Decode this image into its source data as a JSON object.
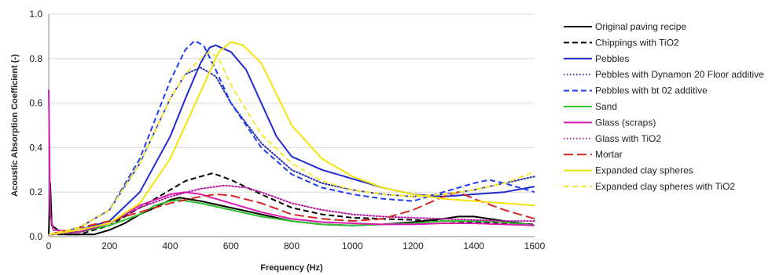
{
  "chart_data": {
    "type": "line",
    "title": "",
    "xlabel": "Frequency (Hz)",
    "ylabel": "Acoustic Absorption Coefficient (-)",
    "xlim": [
      0,
      1600
    ],
    "ylim": [
      0,
      1.0
    ],
    "xticks": [
      0,
      200,
      400,
      600,
      800,
      1000,
      1200,
      1400,
      1600
    ],
    "xtick_labels": [
      "0",
      "200",
      "400",
      "600",
      "800",
      "1000",
      "1200",
      "1400",
      "1600"
    ],
    "yticks": [
      0,
      0.2,
      0.4,
      0.6,
      0.8,
      1.0
    ],
    "ytick_labels": [
      "0.0",
      "0.2",
      "0.4",
      "0.6",
      "0.8",
      "1.0"
    ],
    "grid": "horizontal",
    "legend_position": "right",
    "series": [
      {
        "name": "Original paving recipe",
        "color": "#000000",
        "dash": "solid",
        "points": [
          [
            0,
            0.01
          ],
          [
            5,
            0.24
          ],
          [
            10,
            0.05
          ],
          [
            50,
            0.01
          ],
          [
            150,
            0.01
          ],
          [
            200,
            0.03
          ],
          [
            250,
            0.06
          ],
          [
            300,
            0.1
          ],
          [
            350,
            0.13
          ],
          [
            400,
            0.165
          ],
          [
            430,
            0.175
          ],
          [
            500,
            0.16
          ],
          [
            600,
            0.13
          ],
          [
            700,
            0.1
          ],
          [
            800,
            0.07
          ],
          [
            900,
            0.055
          ],
          [
            1000,
            0.05
          ],
          [
            1100,
            0.055
          ],
          [
            1200,
            0.065
          ],
          [
            1300,
            0.08
          ],
          [
            1350,
            0.09
          ],
          [
            1400,
            0.09
          ],
          [
            1500,
            0.07
          ],
          [
            1600,
            0.05
          ]
        ]
      },
      {
        "name": "Chippings with TiO2",
        "color": "#000000",
        "dash": "dashed",
        "points": [
          [
            0,
            0.01
          ],
          [
            100,
            0.01
          ],
          [
            200,
            0.05
          ],
          [
            300,
            0.13
          ],
          [
            400,
            0.21
          ],
          [
            450,
            0.25
          ],
          [
            500,
            0.27
          ],
          [
            540,
            0.285
          ],
          [
            600,
            0.255
          ],
          [
            700,
            0.19
          ],
          [
            800,
            0.13
          ],
          [
            900,
            0.1
          ],
          [
            1000,
            0.085
          ],
          [
            1100,
            0.08
          ],
          [
            1200,
            0.075
          ],
          [
            1300,
            0.07
          ],
          [
            1400,
            0.065
          ],
          [
            1500,
            0.06
          ],
          [
            1600,
            0.055
          ]
        ]
      },
      {
        "name": "Pebbles",
        "color": "#1f2bd1",
        "dash": "solid",
        "points": [
          [
            0,
            0.01
          ],
          [
            100,
            0.03
          ],
          [
            200,
            0.07
          ],
          [
            300,
            0.2
          ],
          [
            400,
            0.45
          ],
          [
            450,
            0.62
          ],
          [
            500,
            0.78
          ],
          [
            530,
            0.85
          ],
          [
            550,
            0.86
          ],
          [
            600,
            0.83
          ],
          [
            650,
            0.75
          ],
          [
            700,
            0.6
          ],
          [
            750,
            0.45
          ],
          [
            800,
            0.36
          ],
          [
            900,
            0.3
          ],
          [
            1000,
            0.26
          ],
          [
            1100,
            0.22
          ],
          [
            1200,
            0.19
          ],
          [
            1300,
            0.18
          ],
          [
            1400,
            0.19
          ],
          [
            1500,
            0.2
          ],
          [
            1600,
            0.225
          ]
        ]
      },
      {
        "name": "Pebbles with Dynamon 20 Floor additive",
        "color": "#2933a8",
        "dash": "dotted",
        "points": [
          [
            0,
            0.01
          ],
          [
            100,
            0.04
          ],
          [
            200,
            0.12
          ],
          [
            300,
            0.33
          ],
          [
            400,
            0.62
          ],
          [
            450,
            0.73
          ],
          [
            500,
            0.76
          ],
          [
            550,
            0.72
          ],
          [
            600,
            0.6
          ],
          [
            700,
            0.42
          ],
          [
            800,
            0.3
          ],
          [
            900,
            0.24
          ],
          [
            1000,
            0.21
          ],
          [
            1100,
            0.19
          ],
          [
            1200,
            0.18
          ],
          [
            1300,
            0.19
          ],
          [
            1400,
            0.21
          ],
          [
            1500,
            0.24
          ],
          [
            1600,
            0.27
          ]
        ]
      },
      {
        "name": "Pebbles with bt 02 additive",
        "color": "#1f3df5",
        "dash": "dashed",
        "points": [
          [
            0,
            0.01
          ],
          [
            100,
            0.04
          ],
          [
            200,
            0.12
          ],
          [
            300,
            0.35
          ],
          [
            400,
            0.7
          ],
          [
            450,
            0.84
          ],
          [
            480,
            0.88
          ],
          [
            510,
            0.86
          ],
          [
            550,
            0.75
          ],
          [
            600,
            0.6
          ],
          [
            700,
            0.4
          ],
          [
            800,
            0.28
          ],
          [
            900,
            0.22
          ],
          [
            1000,
            0.19
          ],
          [
            1100,
            0.17
          ],
          [
            1200,
            0.16
          ],
          [
            1300,
            0.2
          ],
          [
            1400,
            0.24
          ],
          [
            1450,
            0.255
          ],
          [
            1500,
            0.24
          ],
          [
            1600,
            0.2
          ]
        ]
      },
      {
        "name": "Sand",
        "color": "#2fc12f",
        "dash": "solid",
        "points": [
          [
            0,
            0.01
          ],
          [
            100,
            0.02
          ],
          [
            200,
            0.05
          ],
          [
            300,
            0.1
          ],
          [
            350,
            0.14
          ],
          [
            400,
            0.16
          ],
          [
            430,
            0.165
          ],
          [
            500,
            0.15
          ],
          [
            600,
            0.12
          ],
          [
            700,
            0.09
          ],
          [
            800,
            0.07
          ],
          [
            900,
            0.055
          ],
          [
            1000,
            0.05
          ],
          [
            1100,
            0.055
          ],
          [
            1200,
            0.06
          ],
          [
            1300,
            0.07
          ],
          [
            1400,
            0.07
          ],
          [
            1500,
            0.065
          ],
          [
            1600,
            0.05
          ]
        ]
      },
      {
        "name": "Glass (scraps)",
        "color": "#d81bb1",
        "dash": "solid",
        "points": [
          [
            0,
            0.66
          ],
          [
            5,
            0.1
          ],
          [
            15,
            0.03
          ],
          [
            100,
            0.02
          ],
          [
            200,
            0.06
          ],
          [
            300,
            0.14
          ],
          [
            400,
            0.19
          ],
          [
            450,
            0.2
          ],
          [
            500,
            0.19
          ],
          [
            600,
            0.15
          ],
          [
            700,
            0.11
          ],
          [
            800,
            0.08
          ],
          [
            900,
            0.065
          ],
          [
            1000,
            0.06
          ],
          [
            1100,
            0.055
          ],
          [
            1200,
            0.055
          ],
          [
            1300,
            0.06
          ],
          [
            1400,
            0.06
          ],
          [
            1500,
            0.055
          ],
          [
            1600,
            0.05
          ]
        ]
      },
      {
        "name": "Glass with TiO2",
        "color": "#b5179e",
        "dash": "dotted",
        "points": [
          [
            0,
            0.01
          ],
          [
            100,
            0.02
          ],
          [
            200,
            0.06
          ],
          [
            300,
            0.13
          ],
          [
            400,
            0.18
          ],
          [
            500,
            0.215
          ],
          [
            580,
            0.23
          ],
          [
            650,
            0.22
          ],
          [
            700,
            0.2
          ],
          [
            800,
            0.15
          ],
          [
            900,
            0.12
          ],
          [
            1000,
            0.1
          ],
          [
            1100,
            0.09
          ],
          [
            1200,
            0.085
          ],
          [
            1300,
            0.08
          ],
          [
            1400,
            0.075
          ],
          [
            1500,
            0.07
          ],
          [
            1600,
            0.07
          ]
        ]
      },
      {
        "name": "Mortar",
        "color": "#d62626",
        "dash": "longdash",
        "points": [
          [
            0,
            0.01
          ],
          [
            200,
            0.07
          ],
          [
            300,
            0.11
          ],
          [
            400,
            0.15
          ],
          [
            500,
            0.18
          ],
          [
            550,
            0.19
          ],
          [
            600,
            0.185
          ],
          [
            700,
            0.15
          ],
          [
            800,
            0.1
          ],
          [
            900,
            0.08
          ],
          [
            1000,
            0.07
          ],
          [
            1100,
            0.08
          ],
          [
            1200,
            0.12
          ],
          [
            1300,
            0.18
          ],
          [
            1350,
            0.2
          ],
          [
            1400,
            0.17
          ],
          [
            1500,
            0.12
          ],
          [
            1600,
            0.08
          ]
        ]
      },
      {
        "name": "Expanded clay spheres",
        "color": "#f2e40a",
        "dash": "solid",
        "points": [
          [
            0,
            0.01
          ],
          [
            100,
            0.03
          ],
          [
            200,
            0.06
          ],
          [
            300,
            0.15
          ],
          [
            400,
            0.35
          ],
          [
            500,
            0.65
          ],
          [
            560,
            0.83
          ],
          [
            600,
            0.875
          ],
          [
            640,
            0.86
          ],
          [
            700,
            0.78
          ],
          [
            750,
            0.64
          ],
          [
            800,
            0.5
          ],
          [
            900,
            0.35
          ],
          [
            1000,
            0.27
          ],
          [
            1100,
            0.22
          ],
          [
            1200,
            0.19
          ],
          [
            1300,
            0.17
          ],
          [
            1400,
            0.16
          ],
          [
            1500,
            0.15
          ],
          [
            1600,
            0.14
          ]
        ]
      },
      {
        "name": "Expanded clay spheres with TiO2",
        "color": "#f5e833",
        "dash": "dashed",
        "points": [
          [
            0,
            0.01
          ],
          [
            100,
            0.04
          ],
          [
            200,
            0.12
          ],
          [
            300,
            0.33
          ],
          [
            400,
            0.62
          ],
          [
            450,
            0.73
          ],
          [
            500,
            0.8
          ],
          [
            530,
            0.83
          ],
          [
            560,
            0.8
          ],
          [
            600,
            0.68
          ],
          [
            700,
            0.46
          ],
          [
            800,
            0.33
          ],
          [
            900,
            0.25
          ],
          [
            1000,
            0.21
          ],
          [
            1100,
            0.19
          ],
          [
            1200,
            0.18
          ],
          [
            1300,
            0.19
          ],
          [
            1400,
            0.21
          ],
          [
            1500,
            0.24
          ],
          [
            1600,
            0.29
          ]
        ]
      }
    ]
  }
}
